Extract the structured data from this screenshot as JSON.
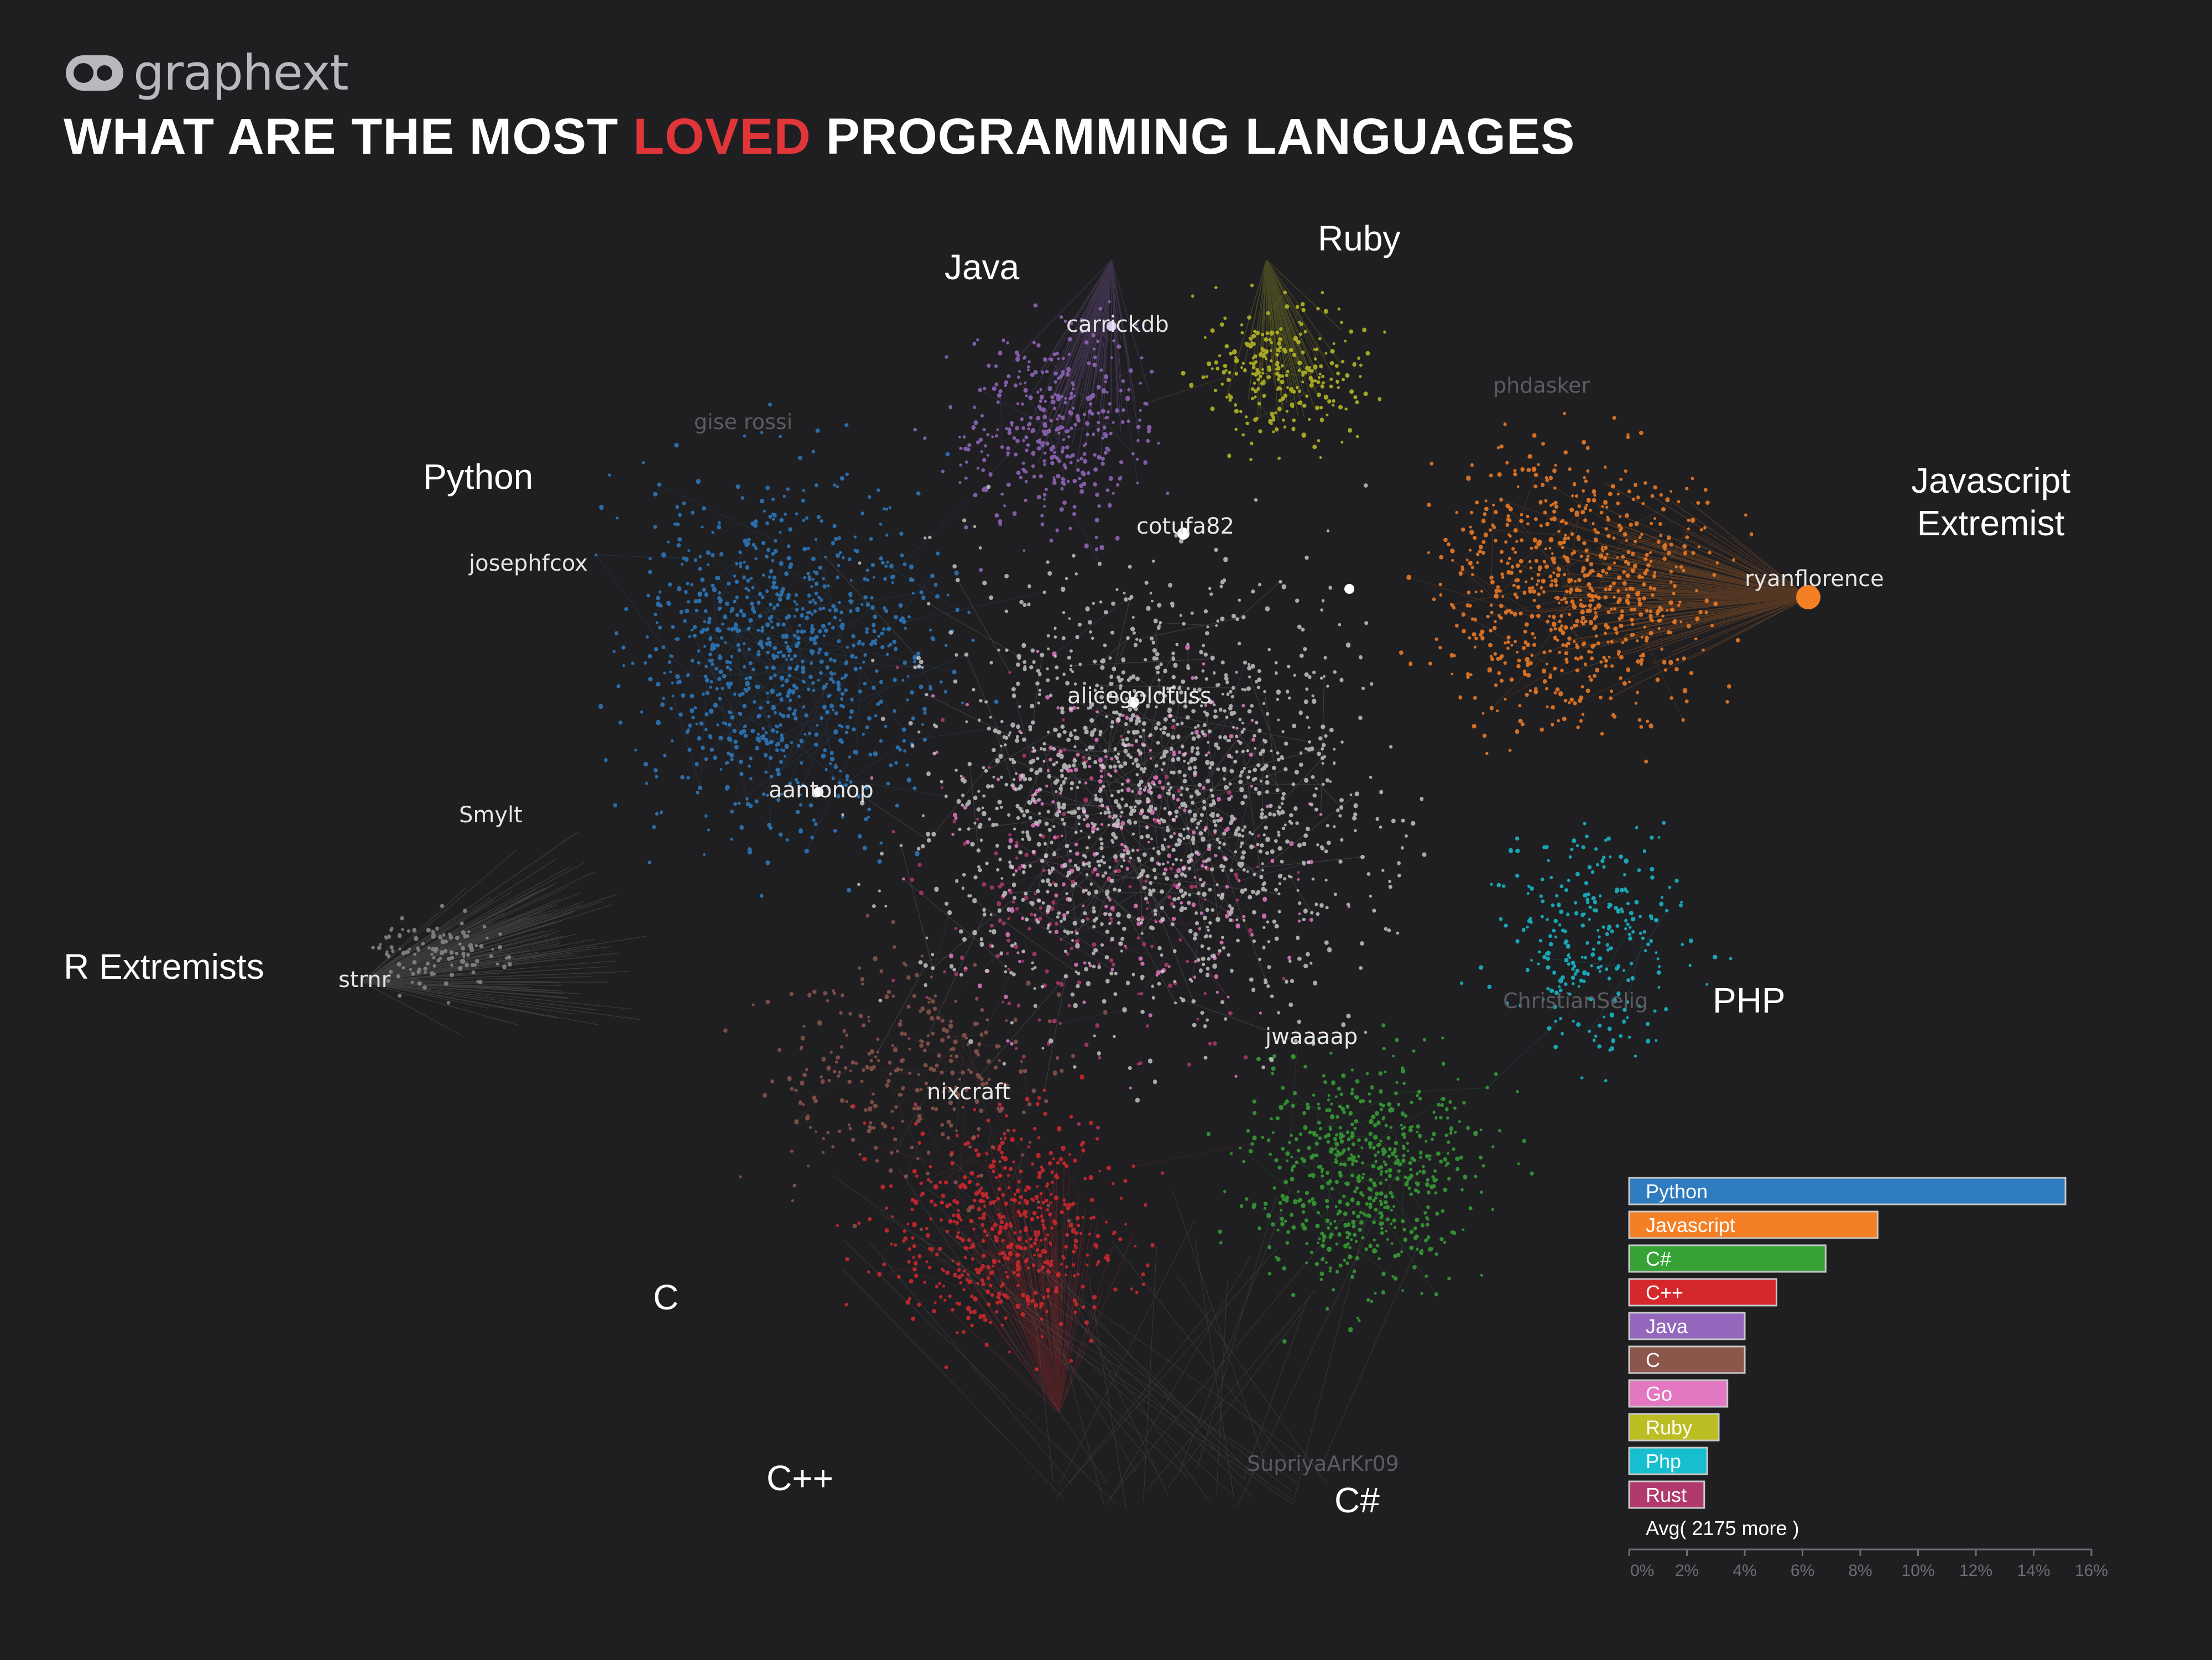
{
  "brand": {
    "name": "graphext",
    "color": "#b7b9bc"
  },
  "title": {
    "before": "WHAT ARE THE MOST ",
    "accent": "LOVED",
    "after": " PROGRAMMING LANGUAGES",
    "accent_color": "#e0363a"
  },
  "cluster_labels": [
    {
      "id": "java",
      "text": "Java"
    },
    {
      "id": "ruby",
      "text": "Ruby"
    },
    {
      "id": "python",
      "text": "Python"
    },
    {
      "id": "js-extremist-1",
      "text": "Javascript"
    },
    {
      "id": "js-extremist-2",
      "text": "Extremist"
    },
    {
      "id": "r-extremists",
      "text": "R Extremists"
    },
    {
      "id": "php",
      "text": "PHP"
    },
    {
      "id": "c",
      "text": "C"
    },
    {
      "id": "cpp",
      "text": "C++"
    },
    {
      "id": "csharp",
      "text": "C#"
    }
  ],
  "user_labels": [
    {
      "id": "carrickdb",
      "text": "carrickdb",
      "bright": true
    },
    {
      "id": "cotufa82",
      "text": "cotufa82",
      "bright": true
    },
    {
      "id": "josephfcox",
      "text": "josephfcox",
      "bright": true
    },
    {
      "id": "ryanflorence",
      "text": "ryanflorence",
      "bright": true
    },
    {
      "id": "alicegoldfuss",
      "text": "alicegoldfuss",
      "bright": true
    },
    {
      "id": "aantonop",
      "text": "aantonop",
      "bright": true
    },
    {
      "id": "smylt",
      "text": "Smylt",
      "bright": true
    },
    {
      "id": "strnr",
      "text": "strnr",
      "bright": true
    },
    {
      "id": "jwaaaap",
      "text": "jwaaaap",
      "bright": true
    },
    {
      "id": "nixcraft",
      "text": "nixcraft",
      "bright": true
    },
    {
      "id": "gisellerossi",
      "text": "gise rossi",
      "bright": false
    },
    {
      "id": "phdasker",
      "text": "phdasker",
      "bright": false
    },
    {
      "id": "christianselig",
      "text": "ChristianSelig",
      "bright": false
    },
    {
      "id": "supriyaarkr09",
      "text": "SupriyaArKr09",
      "bright": false
    }
  ],
  "chart_data": {
    "type": "bar",
    "orientation": "horizontal",
    "categories": [
      "Python",
      "Javascript",
      "C#",
      "C++",
      "Java",
      "C",
      "Go",
      "Ruby",
      "Php",
      "Rust"
    ],
    "series": [
      {
        "values": [
          15.1,
          8.6,
          6.8,
          5.1,
          4.0,
          4.0,
          3.4,
          3.1,
          2.7,
          2.6
        ]
      }
    ],
    "colors": [
      "#2e7bbf",
      "#f57f25",
      "#37a235",
      "#d5282d",
      "#9467bd",
      "#8c564b",
      "#e377c2",
      "#bcbd22",
      "#17becf",
      "#b03a6b"
    ],
    "footer": "Avg( 2175 more )",
    "xticks": [
      "0%",
      "2%",
      "4%",
      "6%",
      "8%",
      "10%",
      "12%",
      "14%",
      "16%"
    ],
    "xlim": [
      0,
      16
    ],
    "unit": "%"
  }
}
